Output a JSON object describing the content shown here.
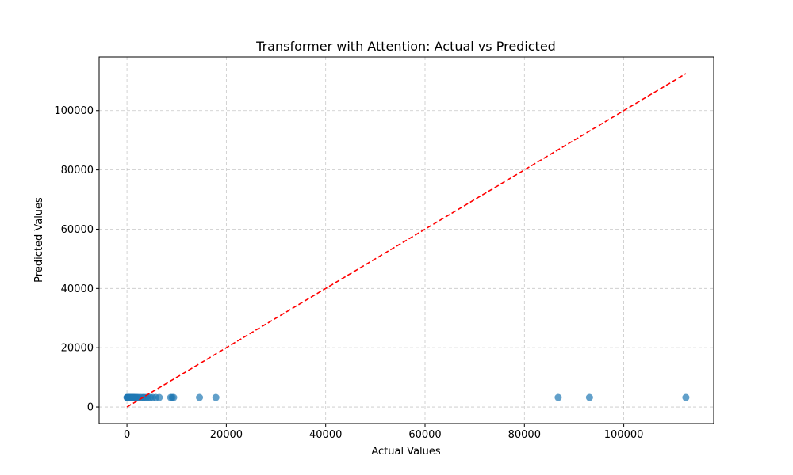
{
  "chart_data": {
    "type": "scatter",
    "title": "Transformer with Attention: Actual vs Predicted",
    "xlabel": "Actual Values",
    "ylabel": "Predicted Values",
    "xlim": [
      -5600,
      118100
    ],
    "ylim": [
      -5600,
      118100
    ],
    "xticks": [
      0,
      20000,
      40000,
      60000,
      80000,
      100000
    ],
    "yticks": [
      0,
      20000,
      40000,
      60000,
      80000,
      100000
    ],
    "grid": true,
    "point_color": "#1f77b4",
    "line_color": "#ff0000",
    "reference_line": {
      "x": [
        0,
        112500
      ],
      "y": [
        0,
        112500
      ],
      "style": "dashed"
    },
    "series": [
      {
        "x": [
          0,
          50,
          100,
          150,
          200,
          250,
          300,
          350,
          400,
          450,
          500,
          600,
          700,
          800,
          900,
          1000,
          1100,
          1200,
          1300,
          1400,
          1500,
          1700,
          1900,
          2100,
          2400,
          2800,
          3200,
          3500,
          3900,
          4300,
          4700,
          5200,
          5800,
          6500,
          8800,
          9100,
          9400,
          14600,
          17900,
          86800,
          93100,
          112500
        ],
        "y": [
          3200,
          3200,
          3200,
          3200,
          3200,
          3200,
          3200,
          3200,
          3200,
          3200,
          3200,
          3200,
          3200,
          3200,
          3200,
          3200,
          3200,
          3200,
          3200,
          3200,
          3200,
          3200,
          3200,
          3200,
          3200,
          3200,
          3200,
          3200,
          3200,
          3200,
          3200,
          3200,
          3200,
          3200,
          3200,
          3200,
          3200,
          3200,
          3200,
          3200,
          3200,
          3200
        ]
      }
    ]
  }
}
